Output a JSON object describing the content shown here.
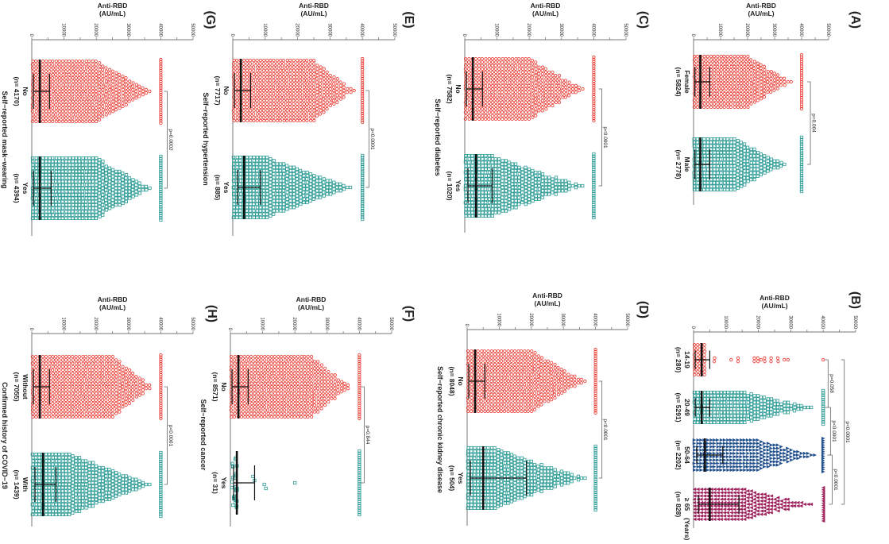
{
  "colors": {
    "red": "#e8332a",
    "teal": "#2a9a94",
    "blue": "#1f4e8c",
    "maroon": "#9c1f5a",
    "axis": "#777777",
    "bar": "#111111"
  },
  "chart_data": [
    {
      "id": "A",
      "letter": "(A)",
      "type": "scatter",
      "ylabel": [
        "Anti-RBD",
        "(AU/mL)"
      ],
      "ylim": [
        0,
        50000
      ],
      "ticks": [
        "0",
        "10000",
        "20000",
        "30000",
        "40000",
        "50000"
      ],
      "title": "",
      "groups": [
        {
          "label": "Female",
          "n_label": "(n= 5824)",
          "n": 5824,
          "median": 2500,
          "q1": 500,
          "q3": 6000,
          "marker": "circle",
          "color": "#e8332a"
        },
        {
          "label": "Male",
          "n_label": "(n= 2778)",
          "n": 2778,
          "median": 2500,
          "q1": 500,
          "q3": 6000,
          "marker": "square",
          "color": "#2a9a94"
        }
      ],
      "comparisons": [
        {
          "groups": [
            0,
            1
          ],
          "p": "p=0.004"
        }
      ]
    },
    {
      "id": "B",
      "letter": "(B)",
      "type": "scatter",
      "ylabel": [
        "Anti-RBD",
        "(AU/mL)"
      ],
      "ylim": [
        0,
        50000
      ],
      "ticks": [
        "0",
        "10000",
        "20000",
        "30000",
        "40000",
        "50000"
      ],
      "title": "",
      "unit_label": "(Years)",
      "groups": [
        {
          "label": "14-19",
          "n_label": "(n= 280)",
          "n": 280,
          "median": 2500,
          "q1": 500,
          "q3": 5000,
          "marker": "circle",
          "color": "#e8332a"
        },
        {
          "label": "20-49",
          "n_label": "(n= 5291)",
          "n": 5291,
          "median": 2500,
          "q1": 500,
          "q3": 5000,
          "marker": "square",
          "color": "#2a9a94"
        },
        {
          "label": "50-64",
          "n_label": "(n= 2202)",
          "n": 2202,
          "median": 3500,
          "q1": 1000,
          "q3": 9000,
          "marker": "triangle-up",
          "color": "#1f4e8c"
        },
        {
          "label": "≥ 65",
          "n_label": "(n= 828)",
          "n": 828,
          "median": 5000,
          "q1": 1500,
          "q3": 14000,
          "marker": "triangle-down",
          "color": "#9c1f5a"
        }
      ],
      "comparisons": [
        {
          "groups": [
            0,
            1
          ],
          "p": "p=0.058"
        },
        {
          "groups": [
            1,
            2
          ],
          "p": "p<0.0001"
        },
        {
          "groups": [
            2,
            3
          ],
          "p": "p<0.0001"
        },
        {
          "groups": [
            0,
            3
          ],
          "p": "p<0.0001"
        }
      ]
    },
    {
      "id": "C",
      "letter": "(C)",
      "type": "scatter",
      "ylabel": [
        "Anti-RBD",
        "(AU/mL)"
      ],
      "ylim": [
        0,
        50000
      ],
      "ticks": [
        "0",
        "10000",
        "20000",
        "30000",
        "40000",
        "50000"
      ],
      "title": "Self−reported diabetes",
      "groups": [
        {
          "label": "No",
          "n_label": "(n= 7582)",
          "n": 7582,
          "median": 2500,
          "q1": 500,
          "q3": 5500,
          "marker": "circle",
          "color": "#e8332a"
        },
        {
          "label": "Yes",
          "n_label": "(n= 1020)",
          "n": 1020,
          "median": 3500,
          "q1": 1000,
          "q3": 8500,
          "marker": "square",
          "color": "#2a9a94"
        }
      ],
      "comparisons": [
        {
          "groups": [
            0,
            1
          ],
          "p": "p<0.0001"
        }
      ]
    },
    {
      "id": "D",
      "letter": "(D)",
      "type": "scatter",
      "ylabel": [
        "Anti-RBD",
        "(AU/mL)"
      ],
      "ylim": [
        0,
        50000
      ],
      "ticks": [
        "0",
        "10000",
        "20000",
        "30000",
        "40000",
        "50000"
      ],
      "title": "Self−reported chronic kidney disease",
      "groups": [
        {
          "label": "No",
          "n_label": "(n= 8048)",
          "n": 8048,
          "median": 2500,
          "q1": 500,
          "q3": 5500,
          "marker": "circle",
          "color": "#e8332a"
        },
        {
          "label": "Yes",
          "n_label": "(n= 504)",
          "n": 504,
          "median": 5000,
          "q1": 1000,
          "q3": 18500,
          "marker": "square",
          "color": "#2a9a94"
        }
      ],
      "comparisons": [
        {
          "groups": [
            0,
            1
          ],
          "p": "p<0.0001"
        }
      ]
    },
    {
      "id": "E",
      "letter": "(E)",
      "type": "scatter",
      "ylabel": [
        "Anti-RBD",
        "(AU/mL)"
      ],
      "ylim": [
        0,
        50000
      ],
      "ticks": [
        "0",
        "10000",
        "20000",
        "30000",
        "40000",
        "50000"
      ],
      "title": "Self−reported hypertension",
      "groups": [
        {
          "label": "No",
          "n_label": "(n= 7717)",
          "n": 7717,
          "median": 2500,
          "q1": 500,
          "q3": 5500,
          "marker": "circle",
          "color": "#e8332a"
        },
        {
          "label": "Yes",
          "n_label": "(n= 885)",
          "n": 885,
          "median": 3500,
          "q1": 1500,
          "q3": 8500,
          "marker": "square",
          "color": "#2a9a94"
        }
      ],
      "comparisons": [
        {
          "groups": [
            0,
            1
          ],
          "p": "p<0.0001"
        }
      ]
    },
    {
      "id": "F",
      "letter": "(F)",
      "type": "scatter",
      "ylabel": [
        "Anti-RBD",
        "(AU/mL)"
      ],
      "ylim": [
        0,
        50000
      ],
      "ticks": [
        "0",
        "10000",
        "20000",
        "30000",
        "40000",
        "50000"
      ],
      "title": "Self−reported cancer",
      "groups": [
        {
          "label": "No",
          "n_label": "(n= 8571)",
          "n": 8571,
          "median": 2500,
          "q1": 500,
          "q3": 5500,
          "marker": "circle",
          "color": "#e8332a"
        },
        {
          "label": "Yes",
          "n_label": "(n= 31)",
          "n": 31,
          "median": 2000,
          "q1": 1000,
          "q3": 7500,
          "marker": "square",
          "color": "#2a9a94"
        }
      ],
      "comparisons": [
        {
          "groups": [
            0,
            1
          ],
          "p": "p=0.844"
        }
      ]
    },
    {
      "id": "G",
      "letter": "(G)",
      "type": "scatter",
      "ylabel": [
        "Anti-RBD",
        "(AU/mL)"
      ],
      "ylim": [
        0,
        50000
      ],
      "ticks": [
        "0",
        "10000",
        "20000",
        "30000",
        "40000",
        "50000"
      ],
      "title": "Self−reported mask−wearing",
      "groups": [
        {
          "label": "No",
          "n_label": "(n= 4170)",
          "n": 4170,
          "median": 2500,
          "q1": 500,
          "q3": 5500,
          "marker": "circle",
          "color": "#e8332a"
        },
        {
          "label": "Yes",
          "n_label": "(n= 4394)",
          "n": 4394,
          "median": 2500,
          "q1": 500,
          "q3": 6000,
          "marker": "square",
          "color": "#2a9a94"
        }
      ],
      "comparisons": [
        {
          "groups": [
            0,
            1
          ],
          "p": "p=0.0002"
        }
      ]
    },
    {
      "id": "H",
      "letter": "(H)",
      "type": "scatter",
      "ylabel": [
        "Anti-RBD",
        "(AU/mL)"
      ],
      "ylim": [
        0,
        50000
      ],
      "ticks": [
        "0",
        "10000",
        "20000",
        "30000",
        "40000",
        "50000"
      ],
      "title": "Confirmed history of COVID−19",
      "groups": [
        {
          "label": "Without",
          "n_label": "(n= 7055)",
          "n": 7055,
          "median": 2500,
          "q1": 500,
          "q3": 5500,
          "marker": "circle",
          "color": "#e8332a"
        },
        {
          "label": "With",
          "n_label": "(n= 1439)",
          "n": 1439,
          "median": 3500,
          "q1": 1000,
          "q3": 7500,
          "marker": "square",
          "color": "#2a9a94"
        }
      ],
      "comparisons": [
        {
          "groups": [
            0,
            1
          ],
          "p": "p<0.0001"
        }
      ]
    }
  ]
}
